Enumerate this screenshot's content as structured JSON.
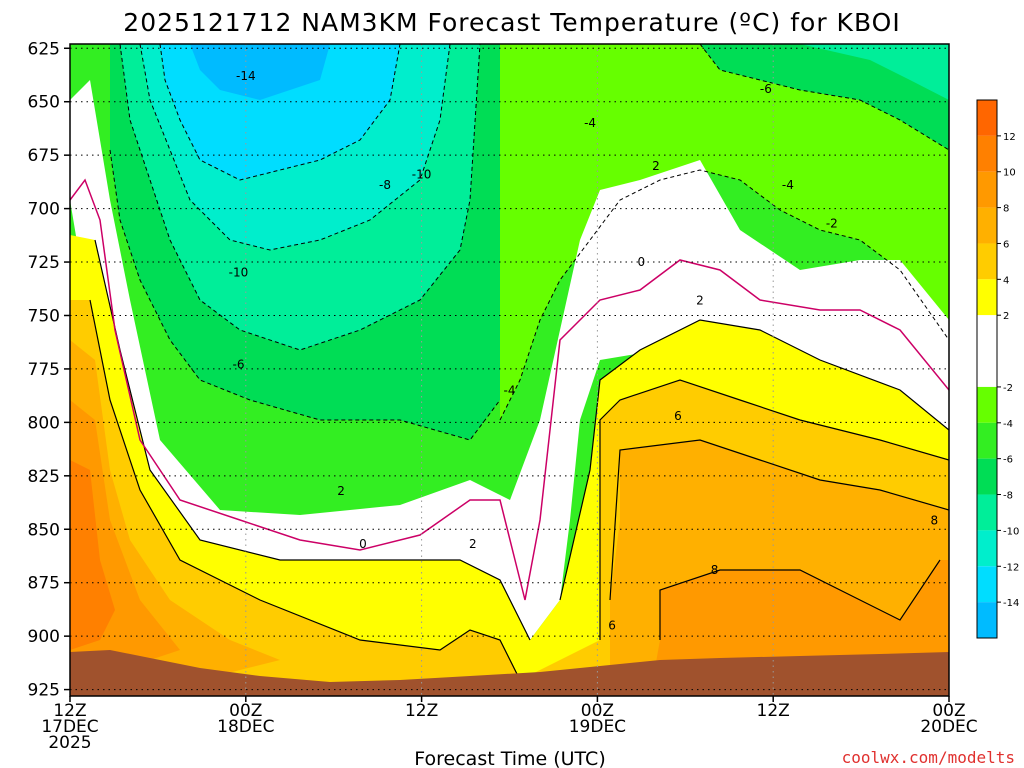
{
  "chart_data": {
    "type": "heatmap",
    "title": "2025121712 NAM3KM Forecast Temperature (ºC) for KBOI",
    "xlabel": "Forecast Time (UTC)",
    "ylabel": "",
    "credit": "coolwx.com/modelts",
    "y_axis": {
      "ticks": [
        625,
        650,
        675,
        700,
        725,
        750,
        775,
        800,
        825,
        850,
        875,
        900,
        925
      ],
      "ylim": [
        928,
        623
      ],
      "inverted": true
    },
    "x_axis": {
      "ticks": [
        {
          "t": 0,
          "lines": [
            "12Z",
            "17DEC",
            "2025"
          ]
        },
        {
          "t": 12,
          "lines": [
            "00Z",
            "18DEC"
          ]
        },
        {
          "t": 24,
          "lines": [
            "12Z"
          ]
        },
        {
          "t": 36,
          "lines": [
            "00Z",
            "19DEC"
          ]
        },
        {
          "t": 48,
          "lines": [
            "12Z"
          ]
        },
        {
          "t": 60,
          "lines": [
            "00Z",
            "20DEC"
          ]
        }
      ],
      "xlim": [
        0,
        60
      ]
    },
    "colorbar": {
      "labels": [
        12,
        10,
        8,
        6,
        4,
        2,
        -2,
        -4,
        -6,
        -8,
        -10,
        -12,
        -14
      ],
      "bands": [
        {
          "from": 12,
          "to": 14,
          "color": "#ff6600"
        },
        {
          "from": 10,
          "to": 12,
          "color": "#ff8000"
        },
        {
          "from": 8,
          "to": 10,
          "color": "#ff9900"
        },
        {
          "from": 6,
          "to": 8,
          "color": "#ffb000"
        },
        {
          "from": 4,
          "to": 6,
          "color": "#ffcc00"
        },
        {
          "from": 2,
          "to": 4,
          "color": "#ffff00"
        },
        {
          "from": -2,
          "to": 2,
          "color": "#ffffff"
        },
        {
          "from": -4,
          "to": -2,
          "color": "#66ff00"
        },
        {
          "from": -6,
          "to": -4,
          "color": "#33ee22"
        },
        {
          "from": -8,
          "to": -6,
          "color": "#00dd55"
        },
        {
          "from": -10,
          "to": -8,
          "color": "#00ee99"
        },
        {
          "from": -12,
          "to": -10,
          "color": "#00eecc"
        },
        {
          "from": -14,
          "to": -12,
          "color": "#00ddff"
        },
        {
          "from": -16,
          "to": -14,
          "color": "#00bbff"
        }
      ]
    },
    "terrain_color": "#a0522d",
    "zero_contour_color": "#cc0066",
    "contour_labels": [
      {
        "text": "-14",
        "t": 12.0,
        "p": 638
      },
      {
        "text": "-10",
        "t": 24.0,
        "p": 684
      },
      {
        "text": "-8",
        "t": 21.5,
        "p": 689
      },
      {
        "text": "-10",
        "t": 11.5,
        "p": 730
      },
      {
        "text": "-6",
        "t": 11.5,
        "p": 773
      },
      {
        "text": "-4",
        "t": 30.0,
        "p": 785
      },
      {
        "text": "-4",
        "t": 35.5,
        "p": 660
      },
      {
        "text": "-6",
        "t": 47.5,
        "p": 644
      },
      {
        "text": "-4",
        "t": 49.0,
        "p": 689
      },
      {
        "text": "2",
        "t": 40.0,
        "p": 680
      },
      {
        "text": "-2",
        "t": 52.0,
        "p": 707
      },
      {
        "text": "0",
        "t": 39.0,
        "p": 725
      },
      {
        "text": "2",
        "t": 43.0,
        "p": 743
      },
      {
        "text": "6",
        "t": 41.5,
        "p": 797
      },
      {
        "text": "8",
        "t": 44.0,
        "p": 869
      },
      {
        "text": "8",
        "t": 59.0,
        "p": 846
      },
      {
        "text": "6",
        "t": 37.0,
        "p": 895
      },
      {
        "text": "2",
        "t": 18.5,
        "p": 832
      },
      {
        "text": "0",
        "t": 20.0,
        "p": 857
      },
      {
        "text": "2",
        "t": 27.5,
        "p": 857
      }
    ]
  }
}
